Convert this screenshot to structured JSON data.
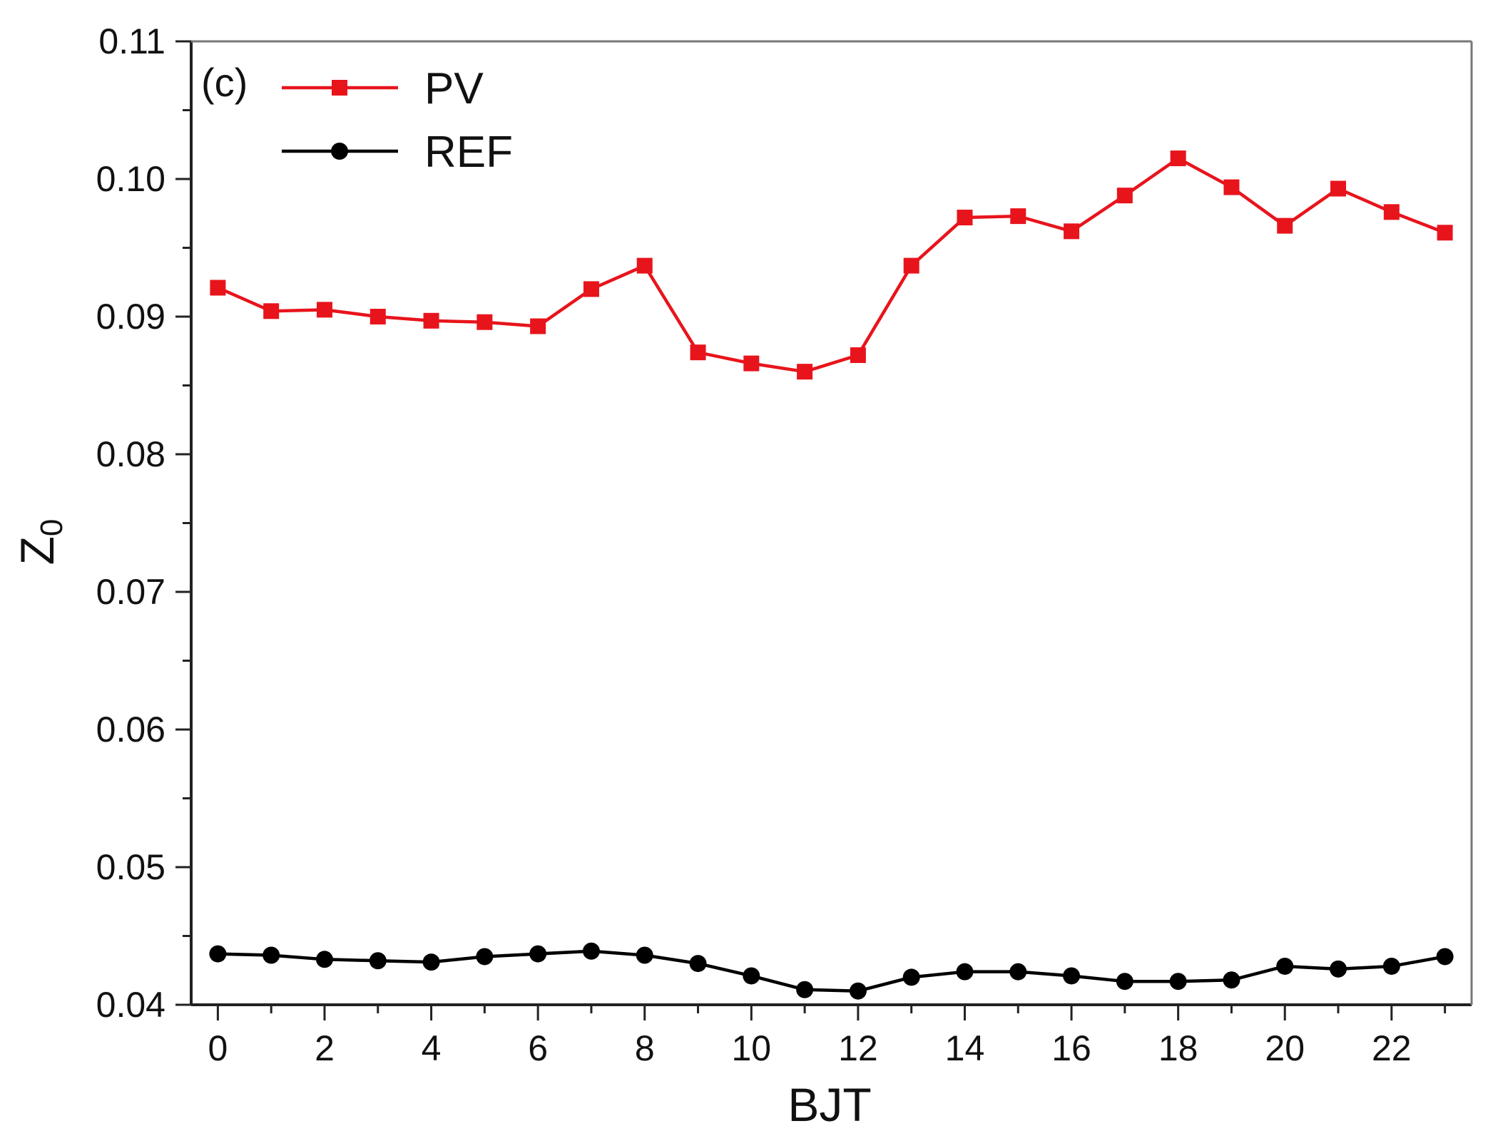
{
  "chart_data": {
    "type": "line",
    "panel_label": "(c)",
    "xlabel": "BJT",
    "ylabel": "Z",
    "ylabel_subscript": "0",
    "xlim": [
      -0.5,
      23.5
    ],
    "ylim": [
      0.04,
      0.11
    ],
    "xticks": [
      0,
      2,
      4,
      6,
      8,
      10,
      12,
      14,
      16,
      18,
      20,
      22
    ],
    "xtick_labels": [
      "0",
      "2",
      "4",
      "6",
      "8",
      "10",
      "12",
      "14",
      "16",
      "18",
      "20",
      "22"
    ],
    "yticks": [
      0.04,
      0.05,
      0.06,
      0.07,
      0.08,
      0.09,
      0.1,
      0.11
    ],
    "ytick_labels": [
      "0.04",
      "0.05",
      "0.06",
      "0.07",
      "0.08",
      "0.09",
      "0.10",
      "0.11"
    ],
    "legend_position": "top-left",
    "grid": false,
    "x": [
      0,
      1,
      2,
      3,
      4,
      5,
      6,
      7,
      8,
      9,
      10,
      11,
      12,
      13,
      14,
      15,
      16,
      17,
      18,
      19,
      20,
      21,
      22,
      23
    ],
    "series": [
      {
        "name": "PV",
        "color": "#e8141c",
        "marker": "square",
        "values": [
          0.0921,
          0.0904,
          0.0905,
          0.09,
          0.0897,
          0.0896,
          0.0893,
          0.092,
          0.0937,
          0.0874,
          0.0866,
          0.086,
          0.0872,
          0.0937,
          0.0972,
          0.0973,
          0.0962,
          0.0988,
          0.1015,
          0.0994,
          0.0966,
          0.0993,
          0.0976,
          0.0961
        ]
      },
      {
        "name": "REF",
        "color": "#000000",
        "marker": "circle",
        "values": [
          0.0437,
          0.0436,
          0.0433,
          0.0432,
          0.0431,
          0.0435,
          0.0437,
          0.0439,
          0.0436,
          0.043,
          0.0421,
          0.0411,
          0.041,
          0.042,
          0.0424,
          0.0424,
          0.0421,
          0.0417,
          0.0417,
          0.0418,
          0.0428,
          0.0426,
          0.0428,
          0.0435
        ]
      }
    ]
  }
}
